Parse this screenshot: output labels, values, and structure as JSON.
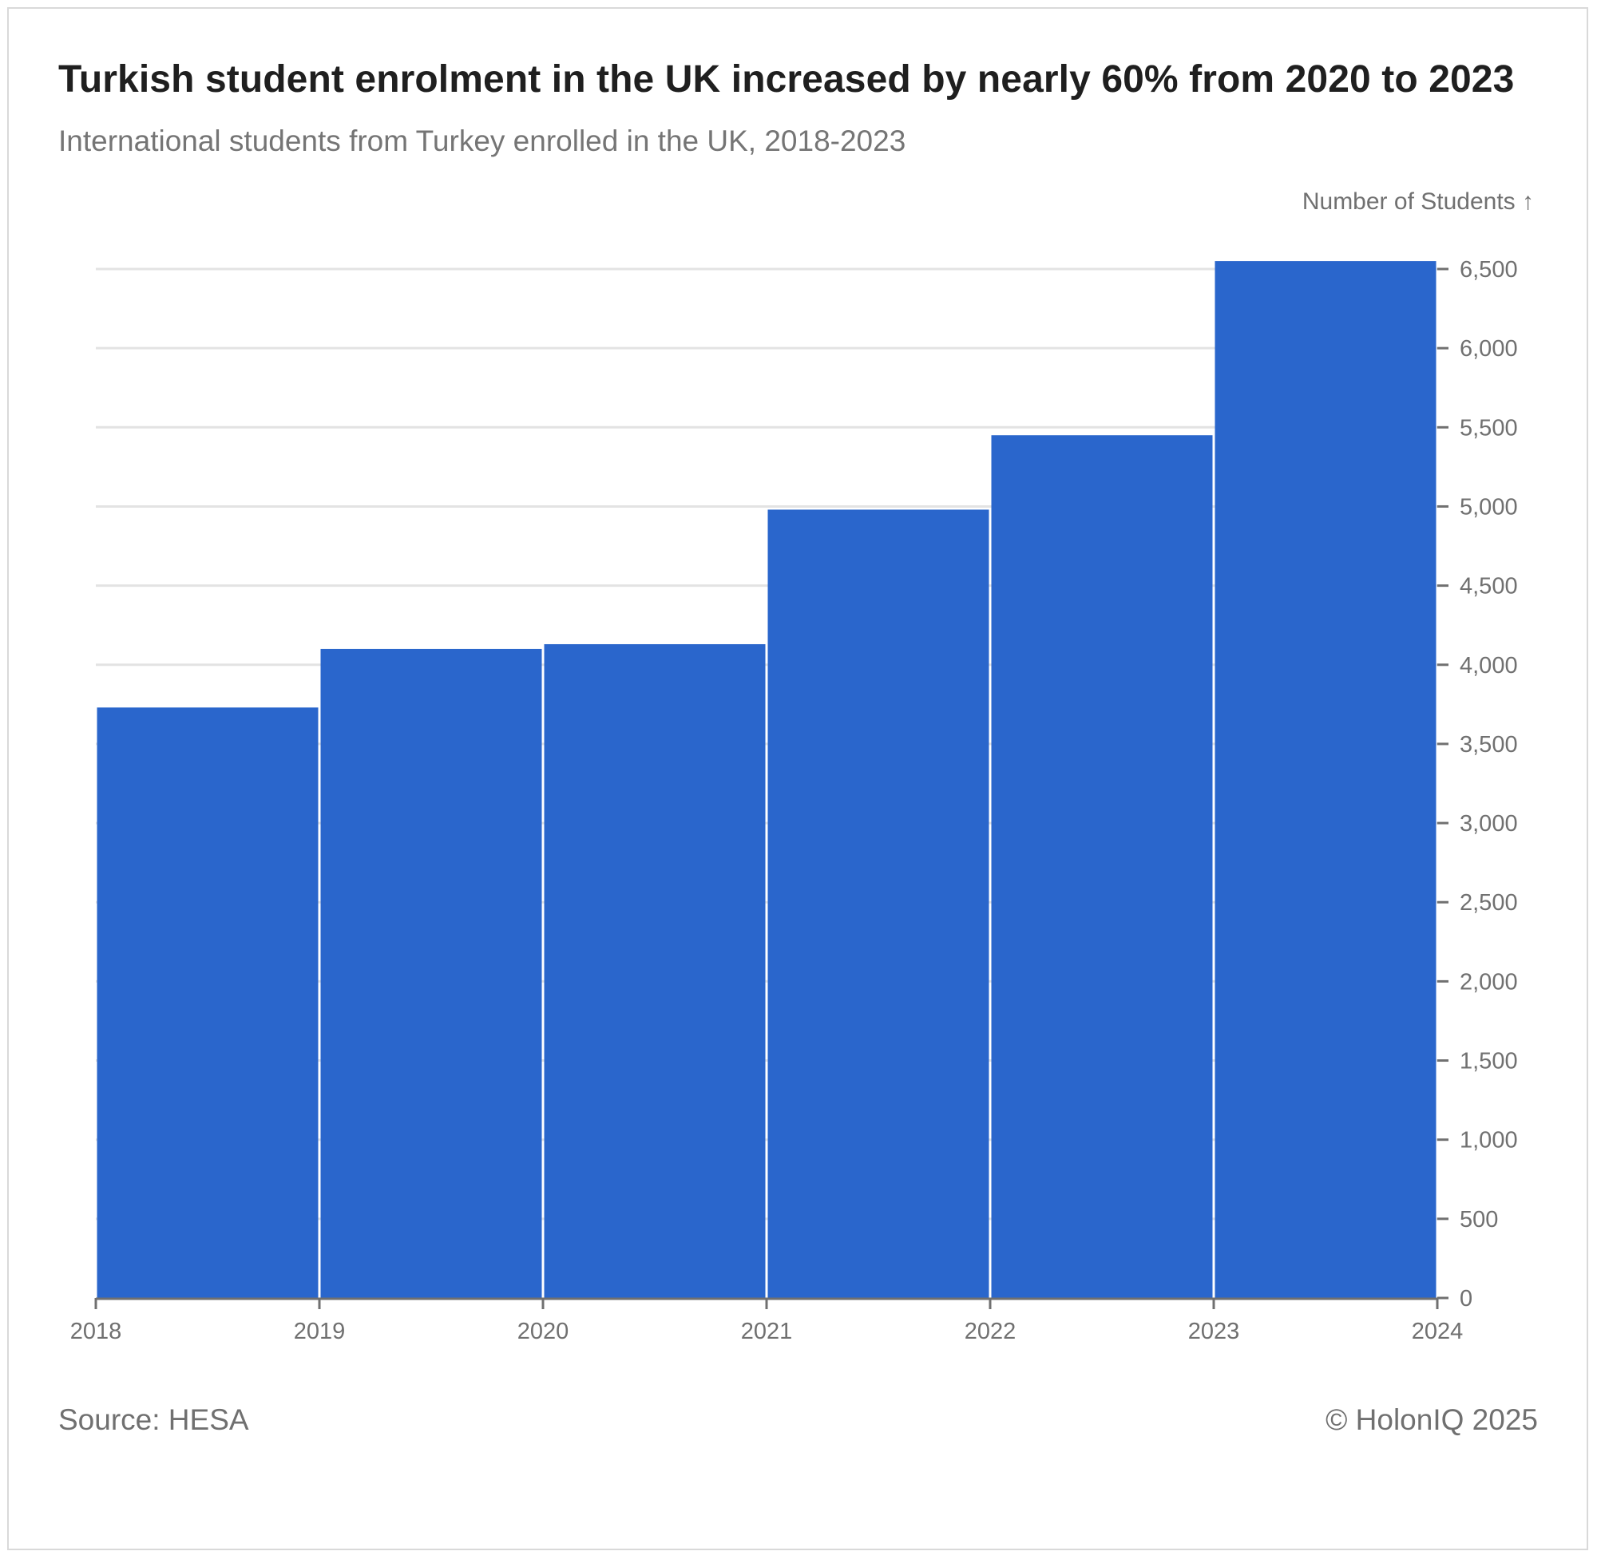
{
  "chart_data": {
    "type": "bar",
    "title": "Turkish student enrolment in the UK increased by nearly 60% from 2020 to 2023",
    "subtitle": "International students from Turkey enrolled in the UK, 2018-2023",
    "ylabel": "Number of Students ↑",
    "xlabel": "",
    "x_ticks": [
      "2018",
      "2019",
      "2020",
      "2021",
      "2022",
      "2023",
      "2024"
    ],
    "categories": [
      "2018",
      "2019",
      "2020",
      "2021",
      "2022",
      "2023"
    ],
    "values": [
      3730,
      4100,
      4130,
      4980,
      5450,
      6550
    ],
    "ylim": [
      0,
      6500
    ],
    "y_ticks": [
      0,
      500,
      1000,
      1500,
      2000,
      2500,
      3000,
      3500,
      4000,
      4500,
      5000,
      5500,
      6000,
      6500
    ],
    "y_axis_side": "right",
    "grid": true,
    "bar_color": "#2a66cc"
  },
  "footer": {
    "source": "Source: HESA",
    "copyright": "© HolonIQ 2025"
  }
}
